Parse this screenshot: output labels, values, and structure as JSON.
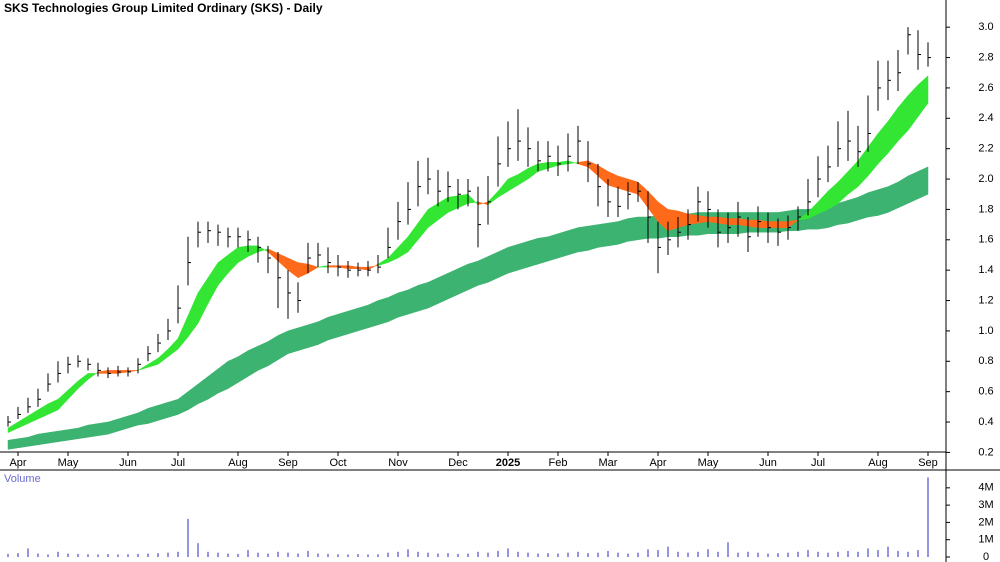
{
  "chart_data": {
    "type": "hlc",
    "title": "SKS Technologies Group Limited Ordinary (SKS) - Daily",
    "categories": [
      null,
      "Apr",
      null,
      null,
      null,
      null,
      "May",
      null,
      null,
      null,
      null,
      null,
      "Jun",
      null,
      null,
      null,
      null,
      "Jul",
      null,
      null,
      null,
      null,
      null,
      "Aug",
      null,
      null,
      null,
      null,
      "Sep",
      null,
      null,
      null,
      null,
      "Oct",
      null,
      null,
      null,
      null,
      null,
      "Nov",
      null,
      null,
      null,
      null,
      null,
      "Dec",
      null,
      null,
      null,
      null,
      "2025",
      null,
      null,
      null,
      null,
      "Feb",
      null,
      null,
      null,
      null,
      "Mar",
      null,
      null,
      null,
      null,
      "Apr",
      null,
      null,
      null,
      null,
      "May",
      null,
      null,
      null,
      null,
      null,
      "Jun",
      null,
      null,
      null,
      null,
      "Jul",
      null,
      null,
      null,
      null,
      null,
      "Aug",
      null,
      null,
      null,
      null,
      "Sep"
    ],
    "close": [
      0.4,
      0.45,
      0.5,
      0.55,
      0.65,
      0.72,
      0.78,
      0.8,
      0.78,
      0.74,
      0.72,
      0.73,
      0.73,
      0.78,
      0.85,
      0.92,
      1.0,
      1.15,
      1.45,
      1.65,
      1.66,
      1.65,
      1.62,
      1.62,
      1.6,
      1.55,
      1.48,
      1.35,
      1.25,
      1.2,
      1.48,
      1.5,
      1.45,
      1.42,
      1.4,
      1.4,
      1.4,
      1.42,
      1.55,
      1.72,
      1.8,
      1.95,
      2.0,
      1.92,
      1.95,
      1.9,
      1.92,
      1.7,
      1.85,
      2.1,
      2.2,
      2.25,
      2.2,
      2.12,
      2.15,
      2.1,
      2.15,
      2.25,
      2.1,
      1.95,
      1.85,
      1.82,
      1.9,
      1.92,
      1.75,
      1.55,
      1.6,
      1.65,
      1.7,
      1.85,
      1.8,
      1.65,
      1.68,
      1.75,
      1.62,
      1.72,
      1.68,
      1.65,
      1.68,
      1.75,
      1.85,
      2.0,
      2.08,
      2.2,
      2.25,
      2.18,
      2.3,
      2.6,
      2.65,
      2.7,
      2.95,
      2.82,
      2.8
    ],
    "high": [
      0.44,
      0.5,
      0.56,
      0.62,
      0.72,
      0.8,
      0.83,
      0.84,
      0.82,
      0.79,
      0.76,
      0.77,
      0.76,
      0.82,
      0.9,
      0.98,
      1.08,
      1.3,
      1.62,
      1.72,
      1.72,
      1.7,
      1.68,
      1.68,
      1.66,
      1.62,
      1.56,
      1.52,
      1.4,
      1.32,
      1.58,
      1.58,
      1.55,
      1.5,
      1.46,
      1.45,
      1.46,
      1.5,
      1.68,
      1.85,
      1.98,
      2.12,
      2.14,
      2.06,
      2.05,
      2.0,
      2.0,
      1.95,
      2.02,
      2.28,
      2.38,
      2.46,
      2.34,
      2.25,
      2.25,
      2.22,
      2.3,
      2.35,
      2.25,
      2.1,
      2.0,
      1.95,
      1.98,
      1.98,
      1.92,
      1.72,
      1.72,
      1.75,
      1.8,
      1.95,
      1.92,
      1.8,
      1.78,
      1.85,
      1.75,
      1.82,
      1.78,
      1.74,
      1.76,
      1.82,
      2.0,
      2.15,
      2.22,
      2.38,
      2.45,
      2.35,
      2.55,
      2.78,
      2.78,
      2.85,
      3.0,
      2.98,
      2.9
    ],
    "low": [
      0.37,
      0.42,
      0.46,
      0.5,
      0.6,
      0.66,
      0.72,
      0.76,
      0.74,
      0.7,
      0.69,
      0.7,
      0.7,
      0.72,
      0.8,
      0.86,
      0.94,
      1.05,
      1.3,
      1.55,
      1.58,
      1.56,
      1.55,
      1.55,
      1.52,
      1.45,
      1.38,
      1.15,
      1.08,
      1.12,
      1.38,
      1.42,
      1.38,
      1.36,
      1.35,
      1.36,
      1.36,
      1.38,
      1.48,
      1.6,
      1.7,
      1.82,
      1.9,
      1.82,
      1.85,
      1.8,
      1.82,
      1.55,
      1.7,
      1.95,
      2.08,
      2.12,
      2.08,
      2.05,
      2.05,
      2.02,
      2.05,
      2.1,
      1.98,
      1.82,
      1.75,
      1.75,
      1.8,
      1.85,
      1.58,
      1.38,
      1.5,
      1.55,
      1.6,
      1.72,
      1.68,
      1.55,
      1.58,
      1.62,
      1.52,
      1.62,
      1.58,
      1.56,
      1.6,
      1.66,
      1.76,
      1.88,
      1.98,
      2.08,
      2.12,
      2.08,
      2.18,
      2.45,
      2.52,
      2.58,
      2.82,
      2.72,
      2.74
    ],
    "color": "#000000",
    "ylim": [
      0.15,
      3.15
    ],
    "yticks": [
      0.2,
      0.4,
      0.6,
      0.8,
      {
        "value": 1,
        "label": "1.0"
      },
      1.2,
      1.4,
      1.6,
      1.8,
      {
        "value": 2,
        "label": "2.0"
      },
      2.2,
      2.4,
      2.6,
      2.8,
      {
        "value": 3,
        "label": "3.0"
      }
    ],
    "ribbons": [
      {
        "fast": [
          0.28,
          0.29,
          0.3,
          0.32,
          0.33,
          0.34,
          0.35,
          0.36,
          0.38,
          0.39,
          0.4,
          0.42,
          0.44,
          0.46,
          0.49,
          0.51,
          0.53,
          0.55,
          0.6,
          0.65,
          0.7,
          0.75,
          0.8,
          0.83,
          0.87,
          0.9,
          0.93,
          0.97,
          1.0,
          1.02,
          1.04,
          1.06,
          1.09,
          1.11,
          1.13,
          1.15,
          1.17,
          1.2,
          1.22,
          1.25,
          1.27,
          1.3,
          1.32,
          1.35,
          1.38,
          1.41,
          1.44,
          1.46,
          1.49,
          1.52,
          1.55,
          1.57,
          1.59,
          1.61,
          1.62,
          1.64,
          1.66,
          1.68,
          1.69,
          1.7,
          1.71,
          1.72,
          1.74,
          1.75,
          1.75,
          1.76,
          1.76,
          1.77,
          1.77,
          1.78,
          1.78,
          1.78,
          1.78,
          1.78,
          1.78,
          1.78,
          1.78,
          1.78,
          1.79,
          1.8,
          1.8,
          1.81,
          1.82,
          1.84,
          1.86,
          1.88,
          1.91,
          1.93,
          1.95,
          1.98,
          2.02,
          2.05,
          2.08
        ],
        "slow": [
          0.22,
          0.23,
          0.24,
          0.25,
          0.26,
          0.27,
          0.28,
          0.29,
          0.3,
          0.31,
          0.32,
          0.34,
          0.36,
          0.38,
          0.39,
          0.41,
          0.43,
          0.45,
          0.48,
          0.52,
          0.55,
          0.59,
          0.62,
          0.66,
          0.7,
          0.74,
          0.77,
          0.81,
          0.85,
          0.87,
          0.89,
          0.91,
          0.94,
          0.96,
          0.98,
          1.0,
          1.02,
          1.04,
          1.06,
          1.09,
          1.11,
          1.13,
          1.15,
          1.18,
          1.21,
          1.24,
          1.27,
          1.3,
          1.32,
          1.35,
          1.38,
          1.4,
          1.42,
          1.44,
          1.46,
          1.48,
          1.5,
          1.52,
          1.53,
          1.55,
          1.56,
          1.57,
          1.59,
          1.6,
          1.61,
          1.61,
          1.62,
          1.62,
          1.63,
          1.63,
          1.64,
          1.64,
          1.64,
          1.64,
          1.65,
          1.65,
          1.65,
          1.65,
          1.66,
          1.66,
          1.67,
          1.67,
          1.68,
          1.7,
          1.71,
          1.73,
          1.75,
          1.76,
          1.78,
          1.81,
          1.84,
          1.87,
          1.9
        ],
        "color": "#3cb371"
      },
      {
        "fast": [
          0.36,
          0.4,
          0.44,
          0.48,
          0.52,
          0.55,
          0.61,
          0.67,
          0.72,
          0.72,
          0.72,
          0.72,
          0.73,
          0.74,
          0.78,
          0.82,
          0.88,
          0.95,
          1.1,
          1.25,
          1.35,
          1.45,
          1.5,
          1.55,
          1.56,
          1.56,
          1.52,
          1.46,
          1.4,
          1.35,
          1.38,
          1.42,
          1.42,
          1.42,
          1.41,
          1.41,
          1.4,
          1.44,
          1.48,
          1.55,
          1.62,
          1.71,
          1.8,
          1.84,
          1.88,
          1.89,
          1.9,
          1.83,
          1.85,
          1.92,
          2.0,
          2.03,
          2.07,
          2.1,
          2.11,
          2.11,
          2.12,
          2.1,
          2.08,
          2.02,
          1.96,
          1.94,
          1.92,
          1.9,
          1.81,
          1.72,
          1.66,
          1.68,
          1.7,
          1.71,
          1.72,
          1.71,
          1.7,
          1.7,
          1.69,
          1.68,
          1.68,
          1.68,
          1.68,
          1.73,
          1.78,
          1.85,
          1.92,
          1.98,
          2.05,
          2.12,
          2.21,
          2.3,
          2.38,
          2.47,
          2.55,
          2.62,
          2.68
        ],
        "slow": [
          0.33,
          0.36,
          0.39,
          0.42,
          0.45,
          0.48,
          0.55,
          0.62,
          0.68,
          0.73,
          0.74,
          0.74,
          0.74,
          0.74,
          0.76,
          0.78,
          0.83,
          0.88,
          0.96,
          1.05,
          1.18,
          1.3,
          1.38,
          1.45,
          1.49,
          1.52,
          1.54,
          1.51,
          1.48,
          1.45,
          1.44,
          1.42,
          1.43,
          1.43,
          1.43,
          1.42,
          1.42,
          1.43,
          1.45,
          1.48,
          1.52,
          1.6,
          1.68,
          1.73,
          1.78,
          1.81,
          1.84,
          1.85,
          1.83,
          1.88,
          1.92,
          1.96,
          2.0,
          2.05,
          2.07,
          2.09,
          2.1,
          2.11,
          2.12,
          2.09,
          2.05,
          2.02,
          2.0,
          1.98,
          1.92,
          1.85,
          1.8,
          1.79,
          1.77,
          1.76,
          1.75,
          1.75,
          1.74,
          1.74,
          1.73,
          1.73,
          1.72,
          1.72,
          1.72,
          1.73,
          1.74,
          1.77,
          1.8,
          1.84,
          1.9,
          1.95,
          2.02,
          2.1,
          2.17,
          2.25,
          2.32,
          2.41,
          2.5
        ],
        "color": "#33e633",
        "color_down": "#ff6a1a"
      }
    ],
    "volume": {
      "title": "Volume",
      "color": "#7070d8",
      "values": [
        180000,
        220000,
        500000,
        200000,
        150000,
        300000,
        200000,
        180000,
        160000,
        150000,
        170000,
        150000,
        160000,
        180000,
        200000,
        220000,
        250000,
        300000,
        2200000,
        800000,
        300000,
        250000,
        200000,
        180000,
        400000,
        250000,
        200000,
        300000,
        250000,
        200000,
        350000,
        200000,
        180000,
        160000,
        150000,
        170000,
        150000,
        160000,
        250000,
        300000,
        450000,
        300000,
        250000,
        200000,
        220000,
        180000,
        200000,
        300000,
        250000,
        350000,
        500000,
        300000,
        250000,
        200000,
        220000,
        200000,
        250000,
        300000,
        220000,
        250000,
        350000,
        250000,
        200000,
        250000,
        450000,
        400000,
        600000,
        300000,
        250000,
        300000,
        450000,
        300000,
        850000,
        250000,
        300000,
        250000,
        200000,
        220000,
        250000,
        300000,
        400000,
        300000,
        250000,
        300000,
        350000,
        300000,
        500000,
        400000,
        600000,
        350000,
        300000,
        400000,
        4600000
      ],
      "ylim": [
        0,
        4800000
      ],
      "yticks": [
        0,
        {
          "value": 1000000,
          "label": "1M"
        },
        {
          "value": 2000000,
          "label": "2M"
        },
        {
          "value": 3000000,
          "label": "3M"
        },
        {
          "value": 4000000,
          "label": "4M"
        }
      ]
    }
  }
}
